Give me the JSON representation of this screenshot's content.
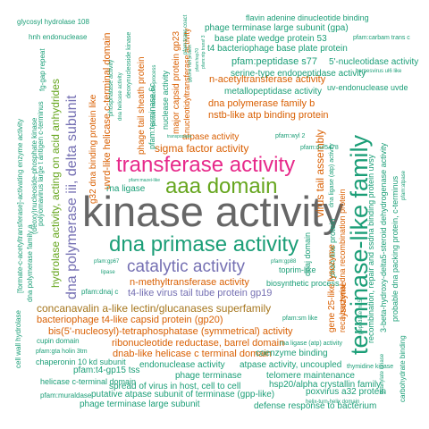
{
  "colors": {
    "green": "#66a61e",
    "gray": "#666666",
    "teal": "#1b9e77",
    "orange": "#d95f02",
    "purple": "#7570b3",
    "magenta": "#e7298a",
    "olive": "#a6761d"
  },
  "words": [
    {
      "text": "kinase activity",
      "color": "gray"
    },
    {
      "text": "terminase-like family",
      "color": "teal"
    },
    {
      "text": "transferase activity",
      "color": "magenta"
    },
    {
      "text": "aaa domain",
      "color": "green"
    },
    {
      "text": "dna primase activity",
      "color": "teal"
    },
    {
      "text": "catalytic activity",
      "color": "purple"
    },
    {
      "text": "dna polymerase iii, delta subunit",
      "color": "purple"
    },
    {
      "text": "hydrolase activity, acting on acid anhydrides",
      "color": "green"
    },
    {
      "text": "concanavalin a-like lectin/glucanases superfamily",
      "color": "olive"
    },
    {
      "text": "n-methyltransferase activity",
      "color": "orange"
    },
    {
      "text": "t4-like virus tail tube protein gp19",
      "color": "purple"
    },
    {
      "text": "bacteriophage t4-like capsid protein (gp20)",
      "color": "orange"
    },
    {
      "text": "bis(5'-nucleosyl)-tetraphosphatase (symmetrical) activity",
      "color": "orange"
    },
    {
      "text": "ribonucleotide reductase, barrel domain",
      "color": "orange"
    },
    {
      "text": "dnab-like helicase c terminal domain",
      "color": "orange"
    },
    {
      "text": "virus tail assembly",
      "color": "orange"
    },
    {
      "text": "sigma factor activity",
      "color": "orange"
    },
    {
      "text": "rna ligase",
      "color": "teal"
    },
    {
      "text": "dna polymerase family b",
      "color": "orange"
    },
    {
      "text": "nstb-like atp binding protein",
      "color": "orange"
    },
    {
      "text": "metallopeptidase activity",
      "color": "teal"
    },
    {
      "text": "n-acetyltransferase activity",
      "color": "orange"
    },
    {
      "text": "atpase activity",
      "color": "orange"
    },
    {
      "text": "pfam:wyl 2",
      "color": "teal"
    },
    {
      "text": "pfam:duf5478",
      "color": "teal"
    },
    {
      "text": "transposase",
      "color": "teal"
    },
    {
      "text": "pfam:mazei-like",
      "color": "teal"
    },
    {
      "text": "major capsid protein gp23",
      "color": "orange"
    },
    {
      "text": "nucleotidyltransferase activity",
      "color": "orange"
    },
    {
      "text": "nuclease activity",
      "color": "teal"
    },
    {
      "text": "pfam:terminase 6c",
      "color": "teal"
    },
    {
      "text": "phage tail sheath protein",
      "color": "orange"
    },
    {
      "text": "protein metabolic process",
      "color": "teal"
    },
    {
      "text": "uvrd-like helicase c-terminal domain",
      "color": "orange"
    },
    {
      "text": "deoxynucleoside kinase",
      "color": "teal"
    },
    {
      "text": "phosphatase activity",
      "color": "teal"
    },
    {
      "text": "g32 dna binding protein like",
      "color": "orange"
    },
    {
      "text": "dna helicase activity",
      "color": "teal"
    },
    {
      "text": "pfam:ntp transf 3",
      "color": "teal"
    },
    {
      "text": "pfam:hsp70",
      "color": "teal"
    },
    {
      "text": "glycine rich protein",
      "color": "teal"
    },
    {
      "text": "pfam:trans coact",
      "color": "teal"
    },
    {
      "text": "flavin adenine dinucleotide binding",
      "color": "teal"
    },
    {
      "text": "phage terminase large subunit (gpa)",
      "color": "teal"
    },
    {
      "text": "pfam:carbam trans c",
      "color": "teal"
    },
    {
      "text": "base plate wedge protein 53",
      "color": "teal"
    },
    {
      "text": "t4 bacteriophage base plate protein",
      "color": "teal"
    },
    {
      "text": "pfam:peptidase s77",
      "color": "teal"
    },
    {
      "text": "5'-nucleotidase activity",
      "color": "teal"
    },
    {
      "text": "herpesvirus ul6 like",
      "color": "teal"
    },
    {
      "text": "serine-type endopeptidase activity",
      "color": "teal"
    },
    {
      "text": "uv-endonuclease uvde",
      "color": "teal"
    },
    {
      "text": "glycosyl hydrolase 108",
      "color": "teal"
    },
    {
      "text": "hnh endonuclease",
      "color": "teal"
    },
    {
      "text": "fg-gap repeat",
      "color": "teal"
    },
    {
      "text": "polyomavirus large t antigen c-terminus",
      "color": "teal"
    },
    {
      "text": "(deoxy)nucleoside-phosphate kinase",
      "color": "teal"
    },
    {
      "text": "[formate-c-acetyltransferase]-activating enzyme activity",
      "color": "teal"
    },
    {
      "text": "dna ligase (atp) activity",
      "color": "teal"
    },
    {
      "text": "phoh-like protein",
      "color": "teal"
    },
    {
      "text": "reca bacterial dna recombination protein",
      "color": "teal"
    },
    {
      "text": "recombination, repair and ssdna binding protein uvsy",
      "color": "teal"
    },
    {
      "text": "3-beta-hydroxy-delta5-steroid dehydrogenase activity",
      "color": "teal"
    },
    {
      "text": "probable dna packing protein, c-terminus",
      "color": "teal"
    },
    {
      "text": "pfam:atpase",
      "color": "teal"
    },
    {
      "text": "toprim-like",
      "color": "teal"
    },
    {
      "text": "pfam:gp88",
      "color": "teal"
    },
    {
      "text": "dnaj domain",
      "color": "teal"
    },
    {
      "text": "pfam:dnaj c",
      "color": "teal"
    },
    {
      "text": "biosynthetic process",
      "color": "teal"
    },
    {
      "text": "pfam:gp67",
      "color": "teal"
    },
    {
      "text": "lipase",
      "color": "teal"
    },
    {
      "text": "dna polymerase family a",
      "color": "teal"
    },
    {
      "text": "cell wall hydrolase",
      "color": "teal"
    },
    {
      "text": "pfam:sm like",
      "color": "teal"
    },
    {
      "text": "cupin domain",
      "color": "teal"
    },
    {
      "text": "pfam:gta holin 3tm",
      "color": "teal"
    },
    {
      "text": "chaperonin 10 kd subunit",
      "color": "teal"
    },
    {
      "text": "pfam:t4-gp15 tss",
      "color": "teal"
    },
    {
      "text": "endonuclease activity",
      "color": "teal"
    },
    {
      "text": "atpase activity, uncoupled",
      "color": "teal"
    },
    {
      "text": "coenzyme binding",
      "color": "teal"
    },
    {
      "text": "rna ligase (atp) activity",
      "color": "teal"
    },
    {
      "text": "lysozyme",
      "color": "orange"
    },
    {
      "text": "gene 25-like lysozyme",
      "color": "orange"
    },
    {
      "text": "helicase c-terminal domain",
      "color": "teal"
    },
    {
      "text": "spread of virus in host, cell to cell",
      "color": "teal"
    },
    {
      "text": "phage terminase",
      "color": "teal"
    },
    {
      "text": "telomere maintenance",
      "color": "teal"
    },
    {
      "text": "hsp20/alpha crystallin family",
      "color": "teal"
    },
    {
      "text": "thymidine kinase",
      "color": "teal"
    },
    {
      "text": "peptidase m15",
      "color": "teal"
    },
    {
      "text": "guanylate kinase",
      "color": "teal"
    },
    {
      "text": "carbohydrate binding",
      "color": "teal"
    },
    {
      "text": "pfam:muraldase",
      "color": "teal"
    },
    {
      "text": "putative atpase subunit of terminase (gpp-like)",
      "color": "teal"
    },
    {
      "text": "poxvirus a32 protein",
      "color": "teal"
    },
    {
      "text": "helix-turn-helix domain",
      "color": "teal"
    },
    {
      "text": "phage terminase large subunit",
      "color": "teal"
    },
    {
      "text": "defense response to bacterium",
      "color": "teal"
    }
  ]
}
